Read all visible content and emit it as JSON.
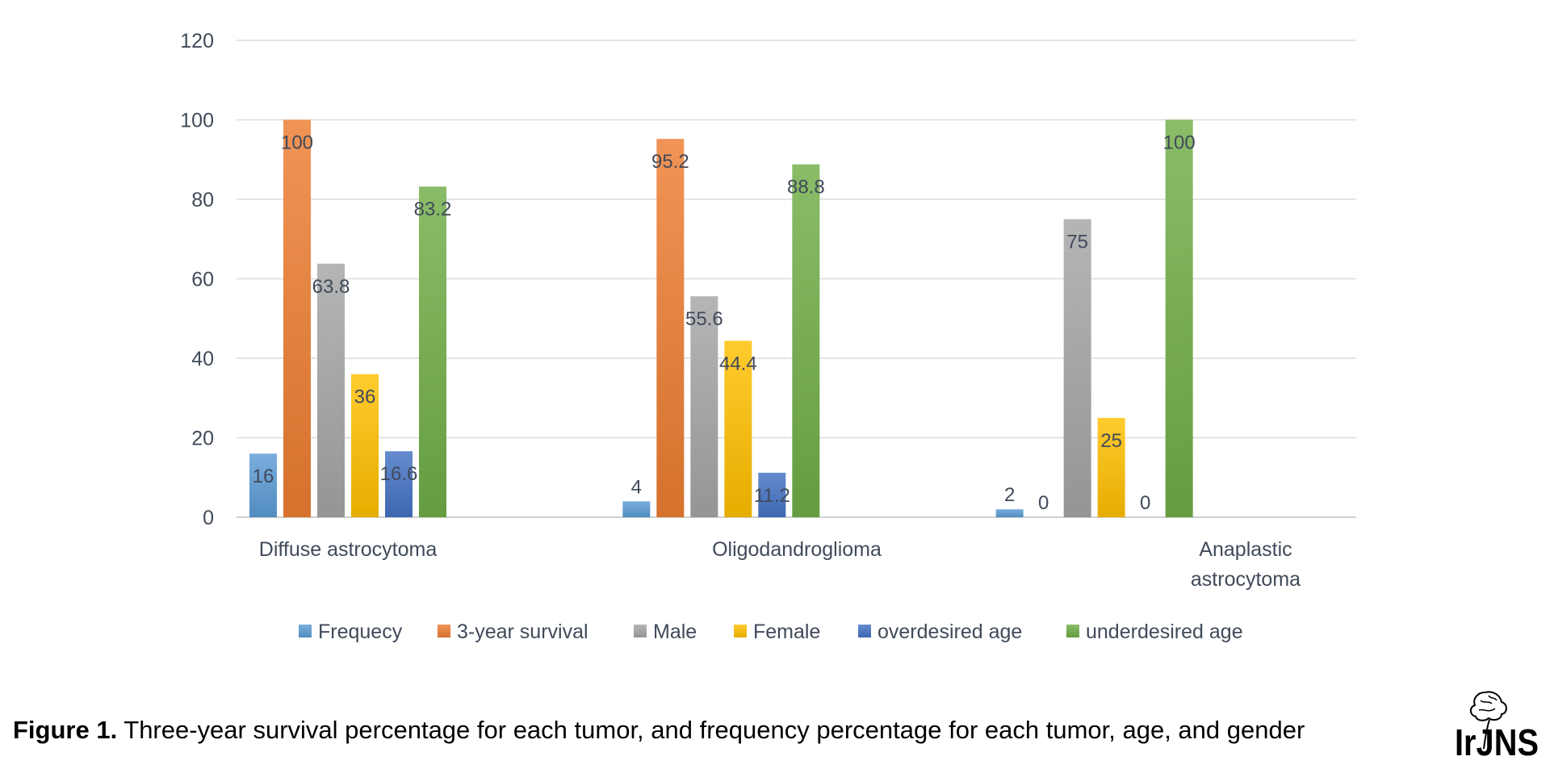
{
  "chart_data": {
    "type": "bar",
    "categories": [
      [
        "Diffuse astrocytoma"
      ],
      [
        "Oligodandroglioma"
      ],
      [
        "Anaplastic",
        "astrocytoma"
      ]
    ],
    "series": [
      {
        "name": "Frequecy",
        "values": [
          16,
          4,
          2
        ],
        "labels": [
          "16",
          "4",
          "2"
        ],
        "color": "#5b9bd5"
      },
      {
        "name": "3-year survival",
        "values": [
          100,
          95.2,
          0
        ],
        "labels": [
          "100",
          "95.2",
          "0"
        ],
        "color": "#ed7d31"
      },
      {
        "name": "Male",
        "values": [
          63.8,
          55.6,
          75
        ],
        "labels": [
          "63.8",
          "55.6",
          "75"
        ],
        "color": "#a5a5a5"
      },
      {
        "name": "Female",
        "values": [
          36,
          44.4,
          25
        ],
        "labels": [
          "36",
          "44.4",
          "25"
        ],
        "color": "#ffc000"
      },
      {
        "name": "overdesired age",
        "values": [
          16.6,
          11.2,
          0
        ],
        "labels": [
          "16.6",
          "11.2",
          "0"
        ],
        "color": "#4472c4"
      },
      {
        "name": "underdesired age",
        "values": [
          83.2,
          88.8,
          100
        ],
        "labels": [
          "83.2",
          "88.8",
          "100"
        ],
        "color": "#70ad47"
      }
    ],
    "ylim": [
      0,
      120
    ],
    "yticks": [
      0,
      20,
      40,
      60,
      80,
      100,
      120
    ],
    "grid": true,
    "legend": "bottom"
  },
  "caption": {
    "label": "Figure 1.",
    "text": " Three-year survival percentage for each tumor, and frequency percentage for each tumor, age, and gender"
  },
  "logo": {
    "text": "IrJNS"
  }
}
